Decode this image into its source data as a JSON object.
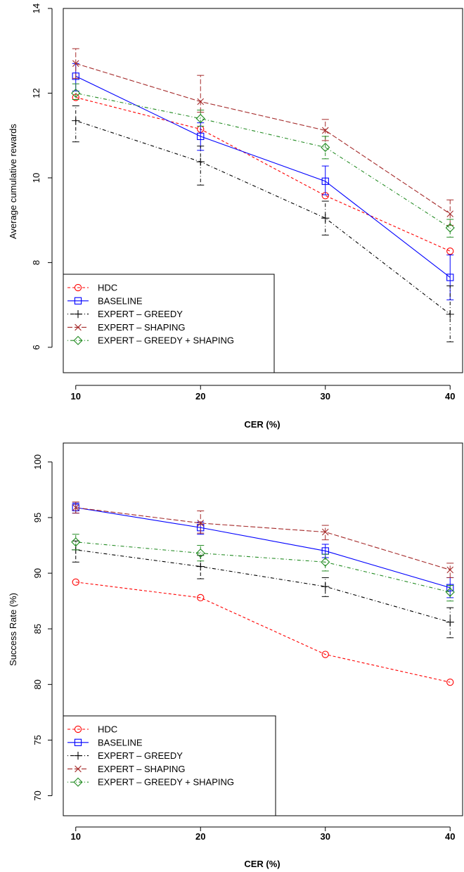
{
  "chart_data": [
    {
      "type": "line",
      "title": "",
      "xlabel": "CER (%)",
      "ylabel": "Average cumulative rewards",
      "x": [
        10,
        20,
        30,
        40
      ],
      "xlim": [
        9,
        41
      ],
      "ylim": [
        5.4,
        14
      ],
      "yticks": [
        6,
        8,
        10,
        12,
        14
      ],
      "grid": false,
      "legend_position": "bottom-left",
      "series": [
        {
          "name": "HDC",
          "color": "#ff0000",
          "marker": "circle",
          "dash": "dashed",
          "values": [
            11.9,
            11.15,
            9.58,
            8.27
          ],
          "err_low": [],
          "err_high": []
        },
        {
          "name": "BASELINE",
          "color": "#0000ff",
          "marker": "square",
          "dash": "solid",
          "values": [
            12.4,
            10.98,
            9.92,
            7.65
          ],
          "err_low": [
            12.05,
            10.65,
            9.6,
            7.12
          ],
          "err_high": [
            12.7,
            11.3,
            10.28,
            8.18
          ]
        },
        {
          "name": "EXPERT – GREEDY",
          "color": "#000000",
          "marker": "plus",
          "dash": "dotdash",
          "values": [
            11.35,
            10.38,
            9.05,
            6.78
          ],
          "err_low": [
            10.85,
            9.83,
            8.65,
            6.13
          ],
          "err_high": [
            11.7,
            10.75,
            9.45,
            7.45
          ]
        },
        {
          "name": "EXPERT – SHAPING",
          "color": "#a52a2a",
          "marker": "cross",
          "dash": "longdash",
          "values": [
            12.7,
            11.8,
            11.12,
            9.15
          ],
          "err_low": [
            12.35,
            11.55,
            10.88,
            8.88
          ],
          "err_high": [
            13.05,
            12.42,
            11.38,
            9.48
          ]
        },
        {
          "name": "EXPERT – GREEDY + SHAPING",
          "color": "#228b22",
          "marker": "diamond",
          "dash": "dotdash",
          "values": [
            12.0,
            11.4,
            10.72,
            8.82
          ],
          "err_low": [
            11.85,
            11.22,
            10.45,
            8.6
          ],
          "err_high": [
            12.22,
            11.6,
            10.98,
            9.02
          ]
        }
      ]
    },
    {
      "type": "line",
      "title": "",
      "xlabel": "CER (%)",
      "ylabel": "Success Rate (%)",
      "x": [
        10,
        20,
        30,
        40
      ],
      "xlim": [
        9,
        41
      ],
      "ylim": [
        68.2,
        101.7
      ],
      "yticks": [
        70,
        75,
        80,
        85,
        90,
        95,
        100
      ],
      "grid": false,
      "legend_position": "bottom-left",
      "series": [
        {
          "name": "HDC",
          "color": "#ff0000",
          "marker": "circle",
          "dash": "dashed",
          "values": [
            89.2,
            87.8,
            82.7,
            80.2
          ],
          "err_low": [],
          "err_high": []
        },
        {
          "name": "BASELINE",
          "color": "#0000ff",
          "marker": "square",
          "dash": "solid",
          "values": [
            95.9,
            94.1,
            92.0,
            88.7
          ],
          "err_low": [
            95.4,
            93.5,
            91.4,
            87.8
          ],
          "err_high": [
            96.3,
            94.6,
            92.6,
            89.6
          ]
        },
        {
          "name": "EXPERT – GREEDY",
          "color": "#000000",
          "marker": "plus",
          "dash": "dotdash",
          "values": [
            92.1,
            90.6,
            88.8,
            85.6
          ],
          "err_low": [
            91.0,
            89.5,
            87.9,
            84.2
          ],
          "err_high": [
            92.9,
            91.6,
            89.6,
            86.9
          ]
        },
        {
          "name": "EXPERT – SHAPING",
          "color": "#a52a2a",
          "marker": "cross",
          "dash": "longdash",
          "values": [
            95.9,
            94.5,
            93.7,
            90.3
          ],
          "err_low": [
            95.4,
            93.6,
            93.0,
            89.6
          ],
          "err_high": [
            96.4,
            95.6,
            94.3,
            90.9
          ]
        },
        {
          "name": "EXPERT – GREEDY + SHAPING",
          "color": "#228b22",
          "marker": "diamond",
          "dash": "dotdash",
          "values": [
            92.8,
            91.8,
            91.0,
            88.3
          ],
          "err_low": [
            92.1,
            91.1,
            90.2,
            87.5
          ],
          "err_high": [
            93.5,
            92.5,
            91.7,
            88.9
          ]
        }
      ]
    }
  ]
}
